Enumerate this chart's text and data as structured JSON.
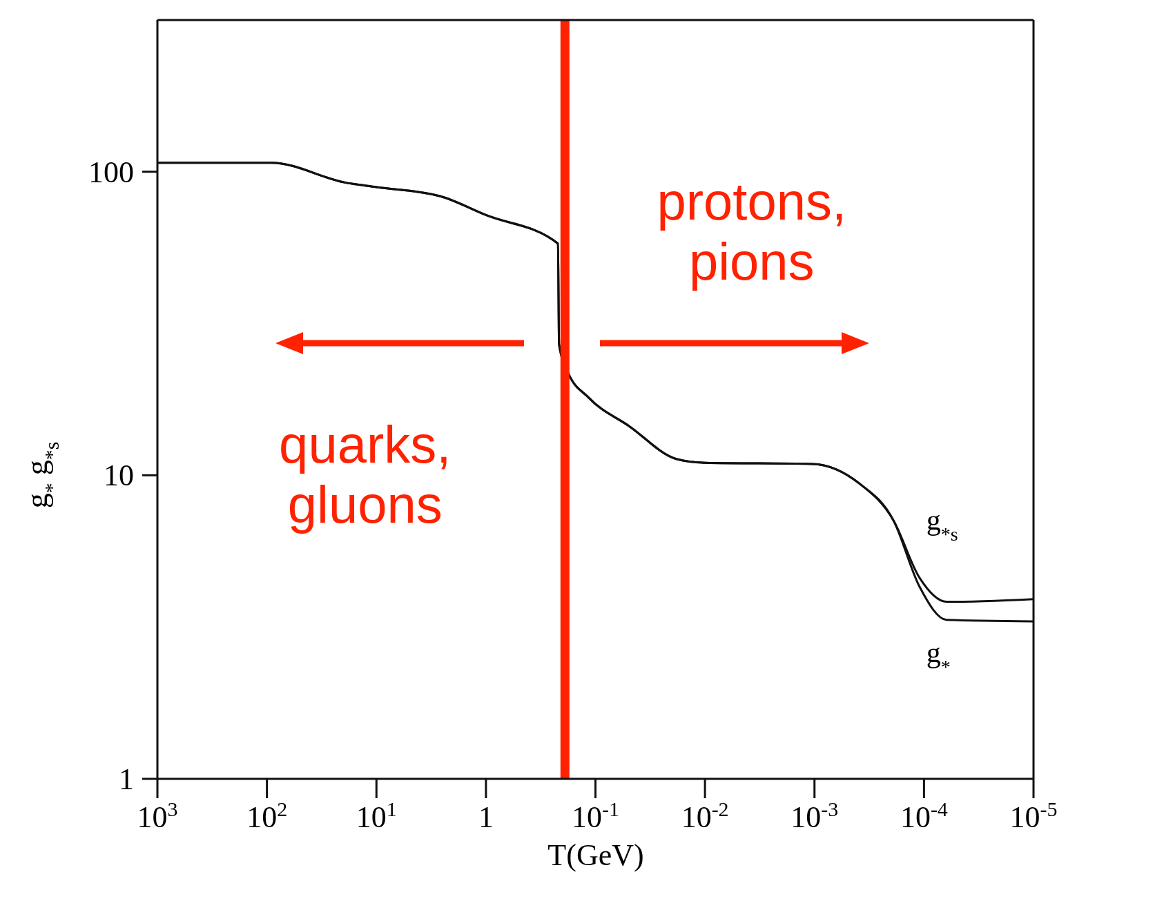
{
  "chart_data": {
    "type": "line",
    "xlabel": "T(GeV)",
    "ylabel": "g$_{*}$            g$_{*s}$",
    "log": "xy",
    "marker": "none",
    "line_style": "solid",
    "xlim": [
      1000,
      1e-05
    ],
    "ylim": [
      1,
      316
    ],
    "xticks": [
      {
        "value": 1000,
        "label": "10$^{3}$"
      },
      {
        "value": 100,
        "label": "10$^{2}$"
      },
      {
        "value": 10,
        "label": "10$^{1}$"
      },
      1,
      {
        "value": 0.1,
        "label": "10$^{-1}$"
      },
      {
        "value": 0.01,
        "label": "10$^{-2}$"
      },
      {
        "value": 0.001,
        "label": "10$^{-3}$"
      },
      {
        "value": 0.0001,
        "label": "10$^{-4}$"
      },
      {
        "value": 1e-05,
        "label": "10$^{-5}$"
      }
    ],
    "yticks": [
      1,
      10,
      100
    ],
    "series": [
      {
        "name": "g$_{*s}$",
        "color": "#111111",
        "x": [
          1000,
          91,
          19,
          10,
          2.6,
          1,
          0.22,
          0.215,
          0.18,
          0.115,
          0.049,
          0.018,
          0.01,
          0.00105,
          0.00039,
          0.00019,
          0.00011,
          6.2e-05,
          1e-05
        ],
        "values": [
          107,
          107,
          92,
          89,
          83,
          72,
          58,
          27,
          22,
          18,
          14.5,
          11.3,
          11,
          10.9,
          9.4,
          7.1,
          4.6,
          3.83,
          3.91
        ]
      },
      {
        "name": "g$_{*}$",
        "color": "#111111",
        "x": [
          1000,
          91,
          19,
          10,
          2.6,
          1,
          0.22,
          0.215,
          0.18,
          0.115,
          0.049,
          0.018,
          0.01,
          0.00105,
          0.00039,
          0.00019,
          0.00011,
          6.2e-05,
          1e-05
        ],
        "values": [
          107,
          107,
          92,
          89,
          83,
          72,
          58,
          27,
          22,
          18,
          14.5,
          11.3,
          11,
          10.9,
          9.4,
          7.1,
          4.3,
          3.34,
          3.3
        ]
      }
    ],
    "ref_lines": [
      {
        "axis": "x",
        "value": 0.19,
        "color": "#ff2200"
      }
    ],
    "annotations": [
      "protons,\npions",
      "quarks,\ngluons"
    ]
  }
}
